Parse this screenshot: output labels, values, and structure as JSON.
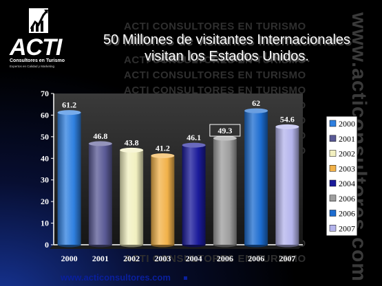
{
  "title_line1": "50 Millones de visitantes Internacionales",
  "title_line2": "visitan los  Estados Unidos.",
  "brand": {
    "logo_text": "ACTI",
    "logo_sub1": "Consultores en Turismo",
    "logo_sub2": "Expertos en Calidad y Marketing",
    "watermark": "ACTI CONSULTORES EN TURISMO",
    "side_watermark": "www.acticonsultores.com",
    "footer_url": "www.acticonsultores.com"
  },
  "chart_data": {
    "type": "bar",
    "categories": [
      "2000",
      "2001",
      "2002",
      "2003",
      "2004",
      "2006",
      "2006",
      "2007"
    ],
    "values": [
      61.2,
      46.8,
      43.8,
      41.2,
      46.1,
      49.3,
      62,
      54.6
    ],
    "data_labels": [
      "61.2",
      "46.8",
      "43.8",
      "41.2",
      "46.1",
      "49.3",
      "62",
      "54.6"
    ],
    "colors": [
      "#2f80e0",
      "#5a5a96",
      "#f2f0c0",
      "#f2b24a",
      "#1a1a9a",
      "#9e9e9e",
      "#1c6cd0",
      "#b4b4ec"
    ],
    "legend": [
      "2000",
      "2001",
      "2002",
      "2003",
      "2004",
      "2006",
      "2006",
      "2007"
    ],
    "legend_placement": "right",
    "ylim": [
      0,
      70
    ],
    "yticks": [
      "0",
      "10",
      "20",
      "30",
      "40",
      "50",
      "60",
      "70"
    ],
    "grid": false,
    "style": "3d-cylinder"
  }
}
